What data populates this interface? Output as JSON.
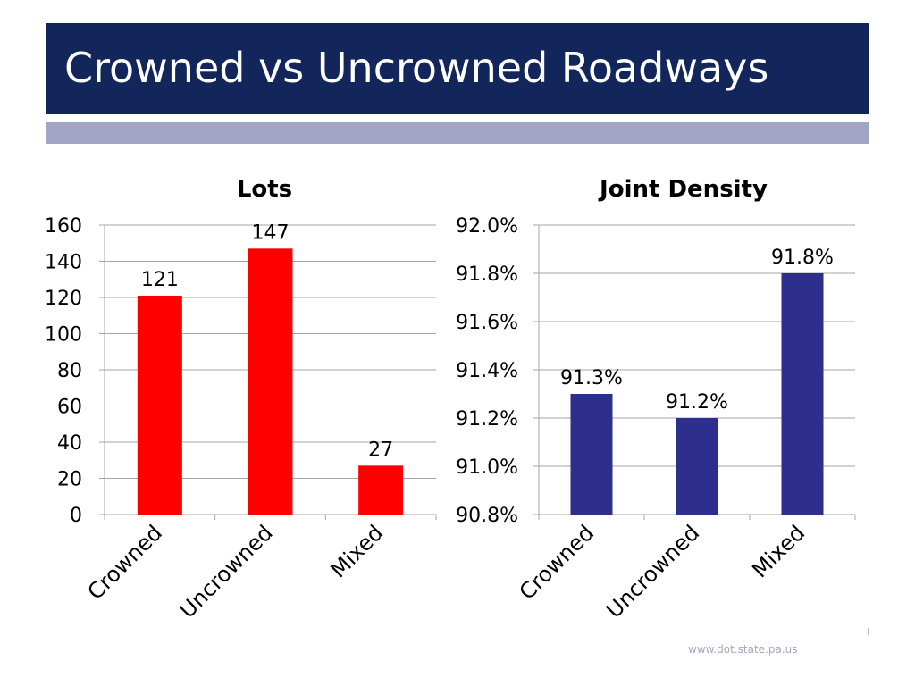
{
  "slide": {
    "title": "Crowned vs Uncrowned Roadways",
    "footer": "www.dot.state.pa.us"
  },
  "colors": {
    "title_bg": "#13265c",
    "accent_bar": "#a3a5c6",
    "lots_bars": "#ff0000",
    "density_bars": "#2e2e8c",
    "grid": "#a6a6a6"
  },
  "chart_data": [
    {
      "type": "bar",
      "title": "Lots",
      "categories": [
        "Crowned",
        "Uncrowned",
        "Mixed"
      ],
      "values": [
        121,
        147,
        27
      ],
      "value_labels": [
        "121",
        "147",
        "27"
      ],
      "ylim": [
        0,
        160
      ],
      "yticks": [
        0,
        20,
        40,
        60,
        80,
        100,
        120,
        140,
        160
      ],
      "ytick_labels": [
        "0",
        "20",
        "40",
        "60",
        "80",
        "100",
        "120",
        "140",
        "160"
      ],
      "grid": true,
      "legend": "none",
      "color": "#ff0000"
    },
    {
      "type": "bar",
      "title": "Joint Density",
      "categories": [
        "Crowned",
        "Uncrowned",
        "Mixed"
      ],
      "values": [
        91.3,
        91.2,
        91.8
      ],
      "value_labels": [
        "91.3%",
        "91.2%",
        "91.8%"
      ],
      "ylim": [
        90.8,
        92.0
      ],
      "yticks": [
        90.8,
        91.0,
        91.2,
        91.4,
        91.6,
        91.8,
        92.0
      ],
      "ytick_labels": [
        "90.8%",
        "91.0%",
        "91.2%",
        "91.4%",
        "91.6%",
        "91.8%",
        "92.0%"
      ],
      "grid": true,
      "legend": "none",
      "color": "#2e2e8c"
    }
  ]
}
